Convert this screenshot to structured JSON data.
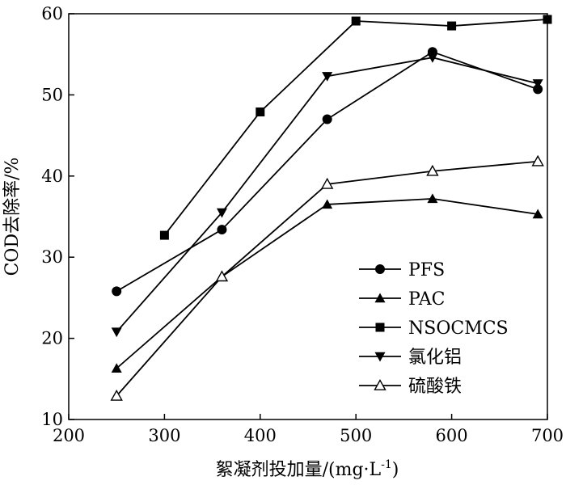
{
  "chart_data": {
    "type": "line",
    "xlabel_main": "絮凝剂投加量/(mg·L",
    "xlabel_sup": "-1",
    "xlabel_tail": ")",
    "ylabel": "COD去除率/%",
    "xlim": [
      200,
      700
    ],
    "ylim": [
      10,
      60
    ],
    "xticks": [
      "200",
      "300",
      "400",
      "500",
      "600",
      "700"
    ],
    "yticks": [
      "10",
      "20",
      "30",
      "40",
      "50",
      "60"
    ],
    "grid": false,
    "legend_position": "bottom-right",
    "series": [
      {
        "name": "PFS",
        "marker": "circle",
        "color": "#000000",
        "x": [
          250,
          360,
          470,
          580,
          690
        ],
        "y": [
          25.8,
          33.4,
          47.0,
          55.3,
          50.7
        ]
      },
      {
        "name": "PAC",
        "marker": "triangle-up",
        "color": "#000000",
        "x": [
          250,
          360,
          470,
          580,
          690
        ],
        "y": [
          16.3,
          27.6,
          36.5,
          37.2,
          35.3
        ]
      },
      {
        "name": "NSOCMCS",
        "marker": "square",
        "color": "#000000",
        "x": [
          300,
          400,
          500,
          600,
          700
        ],
        "y": [
          32.7,
          47.9,
          59.1,
          58.5,
          59.3
        ]
      },
      {
        "name": "氯化铝",
        "marker": "triangle-down",
        "color": "#000000",
        "x": [
          250,
          360,
          470,
          580,
          690
        ],
        "y": [
          20.8,
          35.5,
          52.3,
          54.6,
          51.4
        ]
      },
      {
        "name": "硫酸铁",
        "marker": "triangle-up-open",
        "color": "#000000",
        "x": [
          250,
          360,
          470,
          580,
          690
        ],
        "y": [
          12.9,
          27.6,
          39.0,
          40.6,
          41.8
        ]
      }
    ]
  }
}
